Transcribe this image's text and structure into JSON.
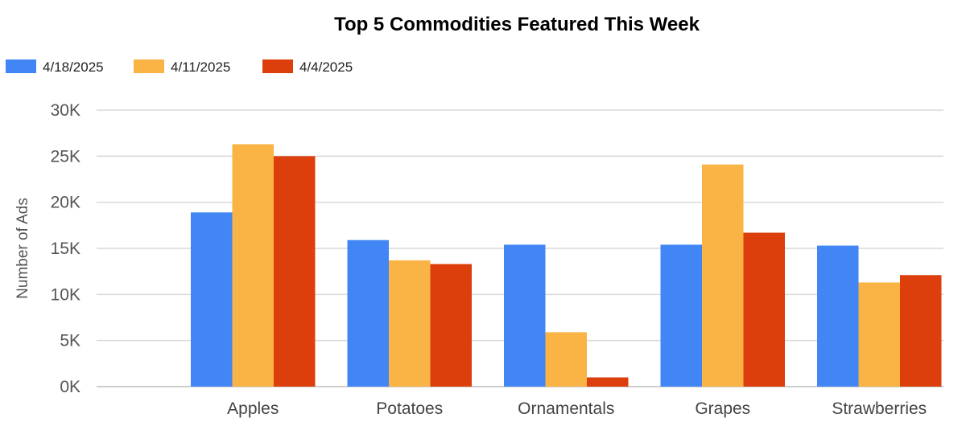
{
  "chart_data": {
    "type": "bar",
    "title": "Top 5 Commodities Featured This Week",
    "xlabel": "",
    "ylabel": "Number of Ads",
    "ylim": [
      0,
      30000
    ],
    "yticks": [
      0,
      5000,
      10000,
      15000,
      20000,
      25000,
      30000
    ],
    "ytick_labels": [
      "0K",
      "5K",
      "10K",
      "15K",
      "20K",
      "25K",
      "30K"
    ],
    "categories": [
      "Apples",
      "Potatoes",
      "Ornamentals",
      "Grapes",
      "Strawberries"
    ],
    "series": [
      {
        "name": "4/18/2025",
        "color": "#4285f4",
        "values": [
          18900,
          15900,
          15400,
          15400,
          15300
        ]
      },
      {
        "name": "4/11/2025",
        "color": "#f9b445",
        "values": [
          26300,
          13700,
          5900,
          24100,
          11300
        ]
      },
      {
        "name": "4/4/2025",
        "color": "#dc3f0c",
        "values": [
          25000,
          13300,
          1000,
          16700,
          12100
        ]
      }
    ],
    "legend_position": "top-left",
    "grid": true
  }
}
